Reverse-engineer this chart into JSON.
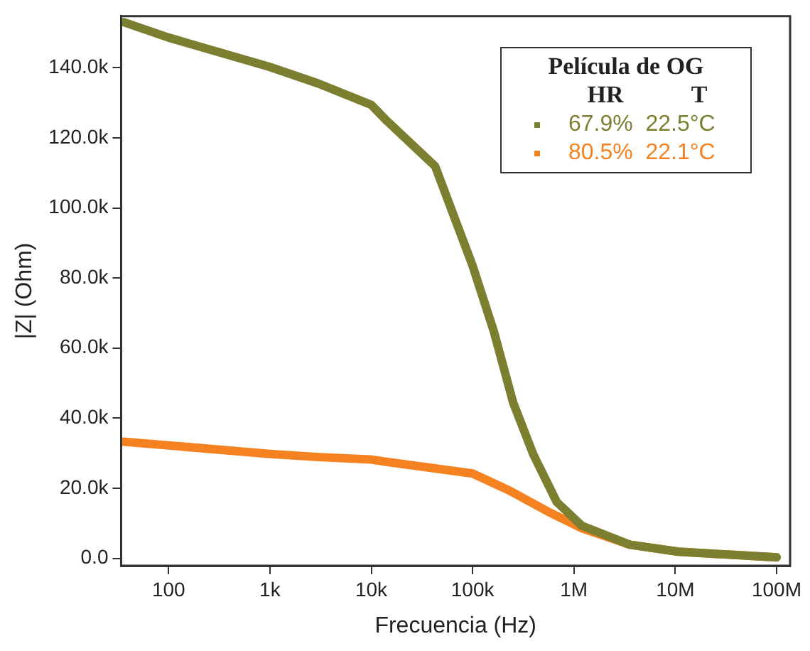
{
  "chart_data": {
    "type": "line",
    "xlabel": "Frecuencia (Hz)",
    "ylabel": "|Z| (Ohm)",
    "legend_title": "Película de OG",
    "annotations": [
      "HR",
      "T"
    ],
    "log": "x",
    "grid": false,
    "legend": "top right",
    "marker": "none",
    "line_style": "solid",
    "xlim": [
      34,
      136000000
    ],
    "xticks": [
      {
        "value": 100,
        "label": "100"
      },
      {
        "value": 1000,
        "label": "1k"
      },
      {
        "value": 10000,
        "label": "10k"
      },
      {
        "value": 100000,
        "label": "100k"
      },
      {
        "value": 1000000,
        "label": "1M"
      },
      {
        "value": 10000000,
        "label": "10M"
      },
      {
        "value": 100000000,
        "label": "100M"
      }
    ],
    "ylim": [
      -2100,
      154700
    ],
    "yticks": [
      {
        "value": 0,
        "label": "0.0"
      },
      {
        "value": 20000,
        "label": "20.0k"
      },
      {
        "value": 40000,
        "label": "40.0k"
      },
      {
        "value": 60000,
        "label": "60.0k"
      },
      {
        "value": 80000,
        "label": "80.0k"
      },
      {
        "value": 100000,
        "label": "100.0k"
      },
      {
        "value": 120000,
        "label": "120.0k"
      },
      {
        "value": 140000,
        "label": "140.0k"
      }
    ],
    "series": [
      {
        "name": "67.9%  22.5°C",
        "color": "#7b7f2f",
        "x": [
          36,
          100,
          1000,
          3000,
          10000,
          14400,
          42700,
          100000,
          162000,
          251000,
          398000,
          676000,
          1200000,
          3550000,
          10700000,
          100000000
        ],
        "values": [
          153000,
          148600,
          140200,
          135500,
          129400,
          124700,
          111900,
          83500,
          64800,
          44500,
          29600,
          16100,
          9300,
          3900,
          1900,
          300
        ]
      },
      {
        "name": "80.5%  22.1°C",
        "color": "#f58220",
        "x": [
          36,
          1000,
          3000,
          10000,
          14400,
          100000,
          229000,
          550000,
          1200000,
          3550000,
          10700000,
          100000000
        ],
        "values": [
          33300,
          29800,
          28900,
          28200,
          27500,
          24200,
          19400,
          13400,
          8600,
          3900,
          1900,
          300
        ]
      }
    ]
  }
}
